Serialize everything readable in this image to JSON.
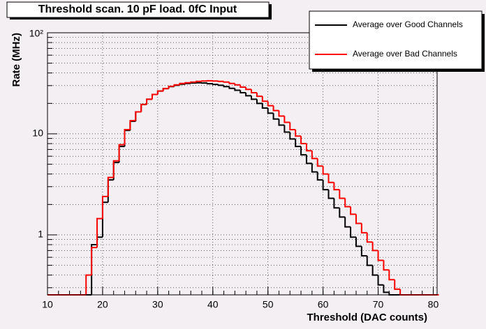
{
  "chart_data": {
    "type": "histogram",
    "title": "Threshold scan. 10 pF load. 0fC Input",
    "x_label": "Threshold (DAC counts)",
    "y_label": "Rate (MHz)",
    "bins": [
      10,
      11,
      12,
      13,
      14,
      15,
      16,
      17,
      18,
      19,
      20,
      21,
      22,
      23,
      24,
      25,
      26,
      27,
      28,
      29,
      30,
      31,
      32,
      33,
      34,
      35,
      36,
      37,
      38,
      39,
      40,
      41,
      42,
      43,
      44,
      45,
      46,
      47,
      48,
      49,
      50,
      51,
      52,
      53,
      54,
      55,
      56,
      57,
      58,
      59,
      60,
      61,
      62,
      63,
      64,
      65,
      66,
      67,
      68,
      69,
      70,
      71,
      72,
      73,
      74,
      75,
      76,
      77,
      78,
      79,
      80,
      81
    ],
    "series": [
      {
        "name": "Average over Good Channels",
        "color": "#000000",
        "values": [
          0,
          0,
          0,
          0,
          0,
          0,
          0,
          0,
          0.8,
          0.95,
          2.1,
          3.5,
          5.2,
          7.5,
          10.8,
          13.3,
          16.5,
          19.5,
          22,
          24.5,
          26.5,
          28,
          29.3,
          30.2,
          31,
          31.5,
          31.8,
          32,
          31.8,
          31.3,
          30.8,
          30.2,
          29.3,
          28.2,
          27,
          25.5,
          23.8,
          22,
          20,
          18,
          16,
          14,
          12.2,
          10.4,
          8.9,
          7.5,
          6.2,
          5.1,
          4.2,
          3.5,
          2.8,
          2.3,
          1.85,
          1.5,
          1.2,
          0.95,
          0.77,
          0.62,
          0.5,
          0.4,
          0.32,
          0.27,
          0.25,
          0,
          0,
          0,
          0,
          0,
          0,
          0,
          0
        ]
      },
      {
        "name": "Average over Bad Channels",
        "color": "#ff0000",
        "values": [
          0,
          0,
          0,
          0,
          0,
          0,
          0,
          0.4,
          0.75,
          1.45,
          2.4,
          3.7,
          5.4,
          7.8,
          11,
          13.5,
          16.5,
          19.5,
          22,
          24.5,
          26.5,
          28,
          29.5,
          30.5,
          31.5,
          32,
          32.5,
          33,
          33.3,
          33.5,
          33.3,
          33,
          32.5,
          31.5,
          30.5,
          29,
          27.5,
          25.5,
          23.5,
          21,
          19,
          17,
          15,
          13,
          11,
          9.5,
          8,
          6.8,
          5.7,
          4.8,
          4,
          3.3,
          2.8,
          2.3,
          1.9,
          1.6,
          1.3,
          1.05,
          0.85,
          0.7,
          0.56,
          0.45,
          0.36,
          0.29,
          0,
          0,
          0,
          0,
          0,
          0,
          0
        ]
      }
    ],
    "xlim": [
      10,
      80.7
    ],
    "xticks": [
      10,
      20,
      30,
      40,
      50,
      60,
      70,
      80
    ],
    "ylim": [
      0.255,
      100
    ],
    "yticks": [
      1,
      10,
      {
        "value": 100,
        "label": "10²"
      }
    ],
    "log_y": true,
    "grid": true,
    "legend": "top-right"
  }
}
